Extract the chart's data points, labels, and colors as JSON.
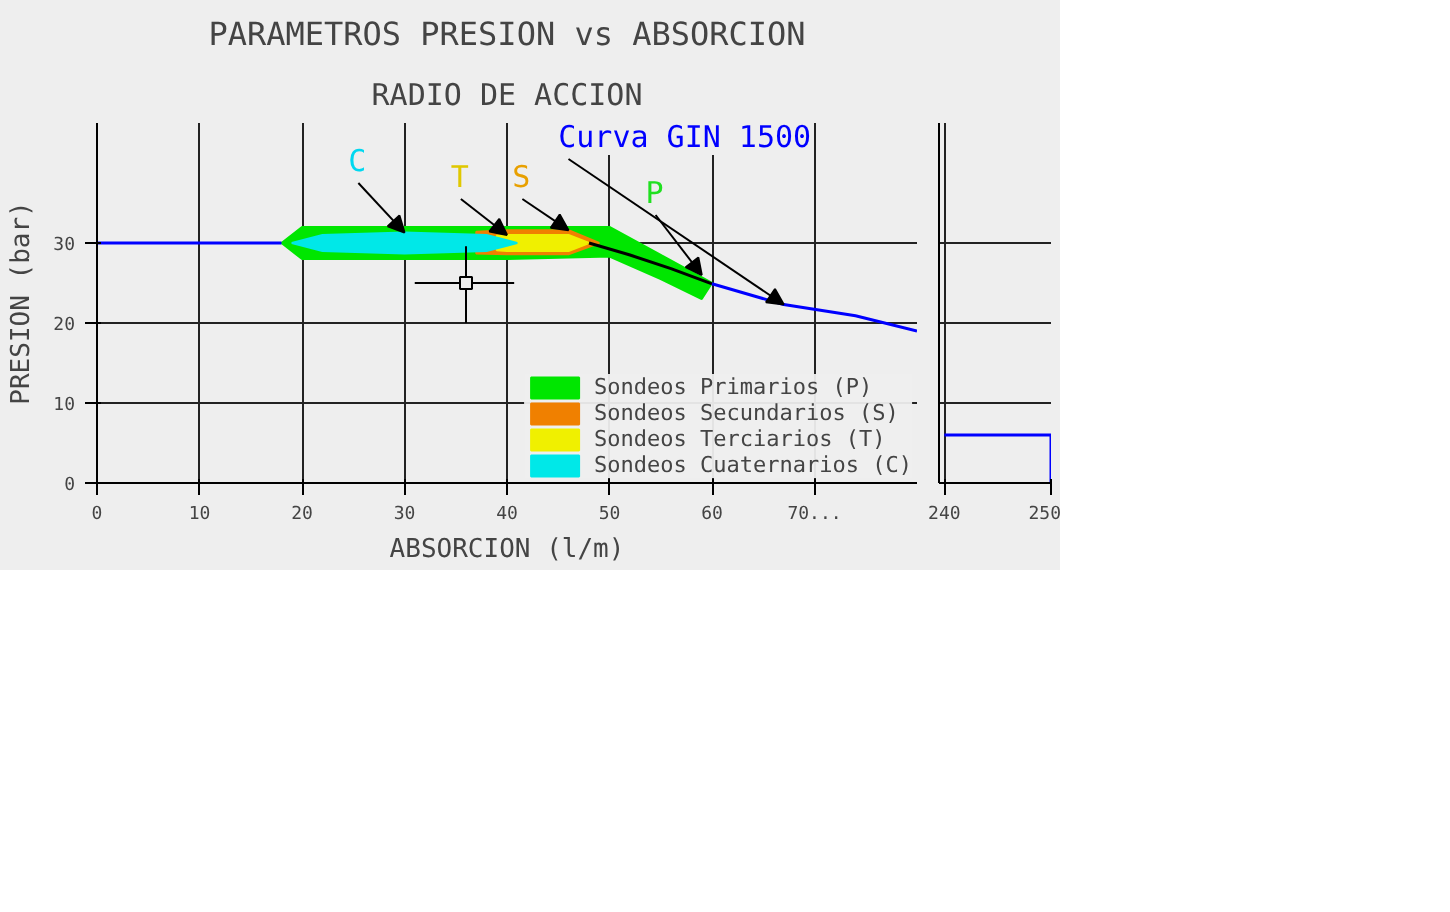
{
  "chart_data": [
    {
      "type": "line",
      "title": "PARAMETROS PRESION vs ABSORCION",
      "subtitle": "RADIO DE ACCION",
      "xlabel": "ABSORCION (l/m)",
      "ylabel": "PRESION (bar)",
      "xlim": [
        0,
        80
      ],
      "xticks": [
        0,
        10,
        20,
        30,
        40,
        50,
        60,
        {
          "value": 70,
          "label": "70..."
        }
      ],
      "ylim": [
        0,
        45
      ],
      "yticks": [
        0,
        10,
        20,
        30
      ],
      "grid": true,
      "legend": "bottom right",
      "series": [
        {
          "type": "area",
          "name": "Sondeos Primarios (P)",
          "color": "#00e600",
          "x": [
            18,
            20,
            30,
            40,
            50,
            55,
            60,
            59,
            55,
            50,
            40,
            30,
            20,
            18
          ],
          "values": [
            30,
            32,
            32,
            32,
            32,
            28.5,
            25,
            23,
            25.5,
            28.3,
            28,
            28,
            28,
            30
          ]
        },
        {
          "type": "area",
          "name": "Sondeos Secundarios (S)",
          "color": "#f08000",
          "x": [
            37,
            40,
            46,
            49,
            46,
            40,
            37
          ],
          "values": [
            31.4,
            31.6,
            31.6,
            30,
            28.6,
            28.6,
            28.7
          ]
        },
        {
          "type": "area",
          "name": "Sondeos Terciarios (T)",
          "color": "#f0f000",
          "x": [
            39,
            40,
            46,
            48,
            46,
            40,
            39
          ],
          "values": [
            30.9,
            31,
            31,
            30,
            29,
            29,
            29.1
          ]
        },
        {
          "type": "area",
          "name": "Sondeos Cuaternarios (C)",
          "color": "#00e8e8",
          "x": [
            19,
            22,
            30,
            38,
            41,
            38,
            30,
            22,
            19
          ],
          "values": [
            30,
            31,
            31.3,
            31,
            30,
            29,
            28.7,
            29,
            30
          ]
        },
        {
          "type": "line",
          "color": "#0000ff",
          "x": [
            0,
            18
          ],
          "values": [
            30,
            30
          ]
        },
        {
          "type": "line",
          "color": "#000000",
          "x": [
            48,
            52,
            56,
            60
          ],
          "values": [
            30,
            28.5,
            26.8,
            24.9
          ]
        },
        {
          "type": "line",
          "color": "#0000ff",
          "x": [
            60,
            67,
            74,
            80
          ],
          "values": [
            24.9,
            22.3,
            20.9,
            19
          ]
        },
        {
          "type": "scatter",
          "color": "#000000",
          "marker": "square",
          "x": [
            36
          ],
          "values": [
            25
          ],
          "errors": [
            [
              20,
              29.6
            ]
          ],
          "xerrors": [
            [
              31,
              40.7
            ]
          ]
        }
      ],
      "annotations": [
        {
          "text": "C",
          "x": 30,
          "y": 31.3
        },
        {
          "text": "T",
          "x": 40,
          "y": 31
        },
        {
          "text": "S",
          "x": 46,
          "y": 31.6
        },
        {
          "text": "P",
          "x": 59,
          "y": 26
        },
        {
          "text": "Curva GIN 1500",
          "x": 67,
          "y": 22.3
        }
      ]
    },
    {
      "type": "line",
      "xlim": [
        239.5,
        250
      ],
      "xticks": [
        240,
        250
      ],
      "ylim": [
        0,
        45
      ],
      "yticks": [
        0,
        10,
        20,
        30
      ],
      "grid": true,
      "tick_labels": "x",
      "series": [
        {
          "color": "#0000ff",
          "x": [
            240,
            250,
            250
          ],
          "values": [
            6,
            6,
            0
          ]
        }
      ]
    }
  ]
}
